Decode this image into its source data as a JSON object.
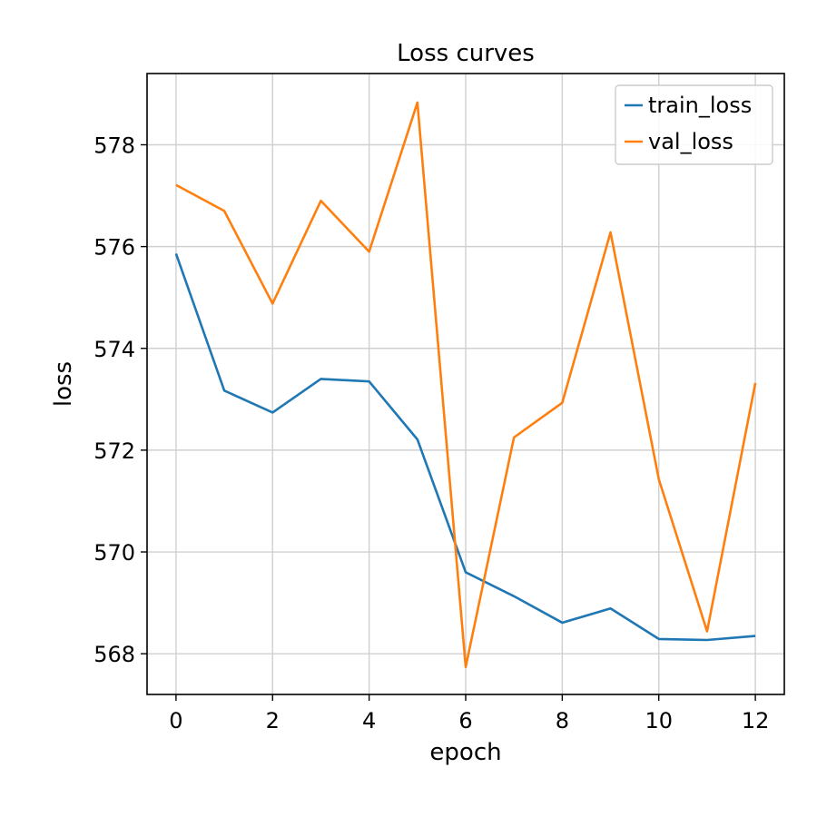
{
  "chart_data": {
    "type": "line",
    "title": "Loss curves",
    "xlabel": "epoch",
    "ylabel": "loss",
    "xlim": [
      -0.6,
      12.6
    ],
    "ylim": [
      567.2,
      579.4
    ],
    "xticks": [
      0,
      2,
      4,
      6,
      8,
      10,
      12
    ],
    "yticks": [
      568,
      570,
      572,
      574,
      576,
      578
    ],
    "grid": true,
    "legend_position": "top-right",
    "x": [
      0,
      1,
      2,
      3,
      4,
      5,
      6,
      7,
      8,
      9,
      10,
      11,
      12
    ],
    "series": [
      {
        "name": "train_loss",
        "color": "#1f77b4",
        "values": [
          575.86,
          573.17,
          572.74,
          573.4,
          573.35,
          572.21,
          569.6,
          569.13,
          568.61,
          568.89,
          568.29,
          568.27,
          568.35
        ]
      },
      {
        "name": "val_loss",
        "color": "#ff7f0e",
        "values": [
          577.21,
          576.7,
          574.88,
          576.9,
          575.9,
          578.83,
          567.74,
          572.25,
          572.93,
          576.28,
          571.43,
          568.44,
          573.32
        ]
      }
    ]
  }
}
